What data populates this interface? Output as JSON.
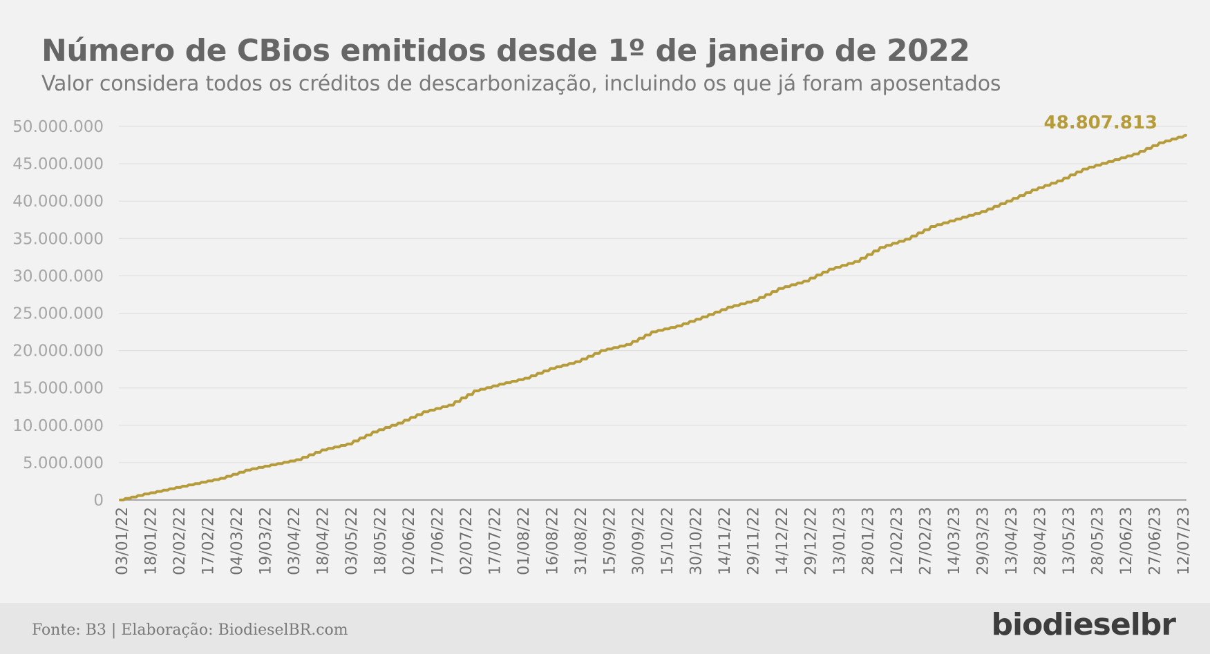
{
  "title": "Número de CBios emitidos desde 1º de janeiro de 2022",
  "subtitle": "Valor considera todos os créditos de descarbonização, incluindo os que já foram aposentados",
  "footer": {
    "source": "Fonte: B3 | Elaboração: BiodieselBR.com",
    "brand": "biodieselbr"
  },
  "colors": {
    "series": "#b59b3a",
    "baseline_series": "#a6a6a6",
    "grid": "#dcdcdc",
    "tick_text": "#a6a6a6",
    "title": "#666666"
  },
  "chart_data": {
    "type": "line",
    "title": "Número de CBios emitidos desde 1º de janeiro de 2022",
    "xlabel": "",
    "ylabel": "",
    "ylim": [
      0,
      50000000
    ],
    "yticks": [
      0,
      5000000,
      10000000,
      15000000,
      20000000,
      25000000,
      30000000,
      35000000,
      40000000,
      45000000,
      50000000
    ],
    "ytick_labels": [
      "0",
      "5.000.000",
      "10.000.000",
      "15.000.000",
      "20.000.000",
      "25.000.000",
      "30.000.000",
      "35.000.000",
      "40.000.000",
      "45.000.000",
      "50.000.000"
    ],
    "xticks": [
      "03/01/22",
      "18/01/22",
      "02/02/22",
      "17/02/22",
      "04/03/22",
      "19/03/22",
      "03/04/22",
      "18/04/22",
      "03/05/22",
      "18/05/22",
      "02/06/22",
      "17/06/22",
      "02/07/22",
      "17/07/22",
      "01/08/22",
      "16/08/22",
      "31/08/22",
      "15/09/22",
      "30/09/22",
      "15/10/22",
      "30/10/22",
      "14/11/22",
      "29/11/22",
      "14/12/22",
      "29/12/22",
      "13/01/23",
      "28/01/23",
      "12/02/23",
      "27/02/23",
      "14/03/23",
      "29/03/23",
      "13/04/23",
      "28/04/23",
      "13/05/23",
      "28/05/23",
      "12/06/23",
      "27/06/23",
      "12/07/23"
    ],
    "grid": true,
    "legend": "none",
    "series": [
      {
        "values": [
          0,
          800000,
          1500000,
          2200000,
          2900000,
          4000000,
          4700000,
          5400000,
          6700000,
          7500000,
          9100000,
          10300000,
          11800000,
          12700000,
          14600000,
          15500000,
          16300000,
          17600000,
          18500000,
          20000000,
          20800000,
          22500000,
          23300000,
          24500000,
          25800000,
          26700000,
          28300000,
          29300000,
          30900000,
          31900000,
          33800000,
          34900000,
          36600000,
          37600000,
          38600000,
          40000000,
          41500000,
          42700000,
          44300000,
          45300000,
          46300000,
          47800000,
          48807813
        ]
      },
      {
        "values": [
          0,
          0,
          0,
          0,
          0,
          0,
          0,
          0,
          0,
          0,
          0,
          0,
          0,
          0,
          0,
          0,
          0,
          0,
          0,
          0,
          0,
          0,
          0,
          0,
          0,
          0,
          0,
          0,
          0,
          0,
          0,
          0,
          0,
          0,
          0,
          0,
          0,
          0,
          0,
          0,
          0,
          0,
          0
        ]
      }
    ],
    "annotations": [
      {
        "text": "48.807.813",
        "at": "last-point"
      }
    ]
  }
}
